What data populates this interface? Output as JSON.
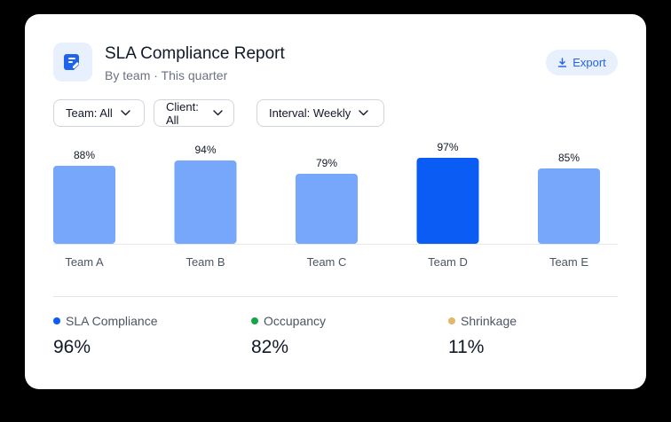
{
  "header": {
    "title": "SLA Compliance Report",
    "subtitle": "By team · This quarter",
    "app_icon": "document-edit-icon",
    "export_label": "Export",
    "export_icon": "download-icon"
  },
  "filters": [
    {
      "label": "Team: All"
    },
    {
      "label": "Client: All"
    },
    {
      "label": "Interval: Weekly"
    }
  ],
  "colors": {
    "accent": "#0a5cf5",
    "bar": "#76a7fa",
    "occupancy": "#16a34a",
    "shrinkage": "#e0b868"
  },
  "chart_data": {
    "type": "bar",
    "categories": [
      "Team A",
      "Team B",
      "Team C",
      "Team D",
      "Team E"
    ],
    "values": [
      88,
      94,
      79,
      97,
      85
    ],
    "data_labels": [
      "88%",
      "94%",
      "79%",
      "97%",
      "85%"
    ],
    "highlighted_index": 3,
    "ylim": [
      0,
      100
    ],
    "grid": false,
    "y_axis_visible": false
  },
  "metrics": [
    {
      "label": "SLA Compliance",
      "value": "96%",
      "color": "#0a5cf5"
    },
    {
      "label": "Occupancy",
      "value": "82%",
      "color": "#16a34a"
    },
    {
      "label": "Shrinkage",
      "value": "11%",
      "color": "#e0b868"
    }
  ]
}
